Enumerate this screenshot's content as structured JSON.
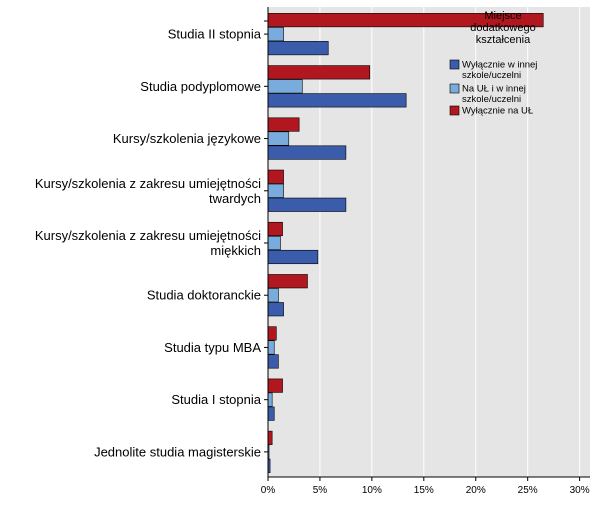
{
  "chart_data": {
    "type": "bar",
    "orientation": "horizontal",
    "categories": [
      [
        "Studia II stopnia"
      ],
      [
        "Studia podyplomowe"
      ],
      [
        "Kursy/szkolenia językowe"
      ],
      [
        "Kursy/szkolenia z zakresu umiejętności",
        "twardych"
      ],
      [
        "Kursy/szkolenia z zakresu umiejętności",
        "miękkich"
      ],
      [
        "Studia doktoranckie"
      ],
      [
        "Studia typu MBA"
      ],
      [
        "Studia I stopnia"
      ],
      [
        "Jednolite studia magisterskie"
      ]
    ],
    "series": [
      {
        "name": "Wyłącznie na UŁ",
        "color": "#b0171f",
        "values": [
          26.5,
          9.8,
          3.0,
          1.5,
          1.4,
          3.8,
          0.8,
          1.4,
          0.4
        ]
      },
      {
        "name": "Na UŁ i w innej szkole/uczelni",
        "color": "#79acdc",
        "values": [
          1.5,
          3.3,
          2.0,
          1.5,
          1.2,
          1.0,
          0.6,
          0.4,
          0.1
        ]
      },
      {
        "name": "Wyłącznie w innej szkole/uczelni",
        "color": "#3a5cab",
        "values": [
          5.8,
          13.3,
          7.5,
          7.5,
          4.8,
          1.5,
          1.0,
          0.6,
          0.2
        ]
      }
    ],
    "legend": {
      "title": [
        "Miejsce",
        "dodatkowego",
        "kształcenia"
      ],
      "order": [
        2,
        1,
        0
      ],
      "entries": [
        [
          "Wyłącznie w innej",
          "szkole/uczelni"
        ],
        [
          "Na UŁ i w innej",
          "szkole/uczelni"
        ],
        [
          "Wyłącznie na UŁ"
        ]
      ],
      "position": "top-right"
    },
    "xlim": [
      0,
      31
    ],
    "xticks": [
      0,
      5,
      10,
      15,
      20,
      25,
      30
    ],
    "xtick_labels": [
      "0%",
      "5%",
      "10%",
      "15%",
      "20%",
      "25%",
      "30%"
    ],
    "grid": "vertical",
    "background": "#e5e5e5"
  }
}
